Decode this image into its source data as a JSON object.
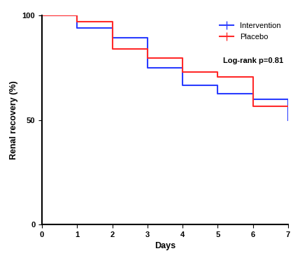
{
  "chart_data": {
    "type": "step",
    "x_label": "Days",
    "y_label": "Renal recovery (%)",
    "annotation": "Log-rank p=0.81",
    "x": [
      0,
      1,
      2,
      3,
      4,
      5,
      6,
      7
    ],
    "series": [
      {
        "name": "Intervention",
        "color": "#2a3cff",
        "values": [
          100,
          94,
          89.5,
          75,
          66.5,
          62.5,
          60,
          50
        ]
      },
      {
        "name": "Placebo",
        "color": "#ff2a2a",
        "values": [
          100,
          97,
          84,
          79.5,
          73,
          70.5,
          56.5,
          56.5
        ]
      }
    ],
    "xlim": [
      0,
      7
    ],
    "xticks": [
      0,
      1,
      2,
      3,
      4,
      5,
      6,
      7
    ],
    "ylim": [
      0,
      100
    ],
    "yticks": [
      0,
      50,
      100
    ],
    "legend": "upper right",
    "grid": false
  }
}
